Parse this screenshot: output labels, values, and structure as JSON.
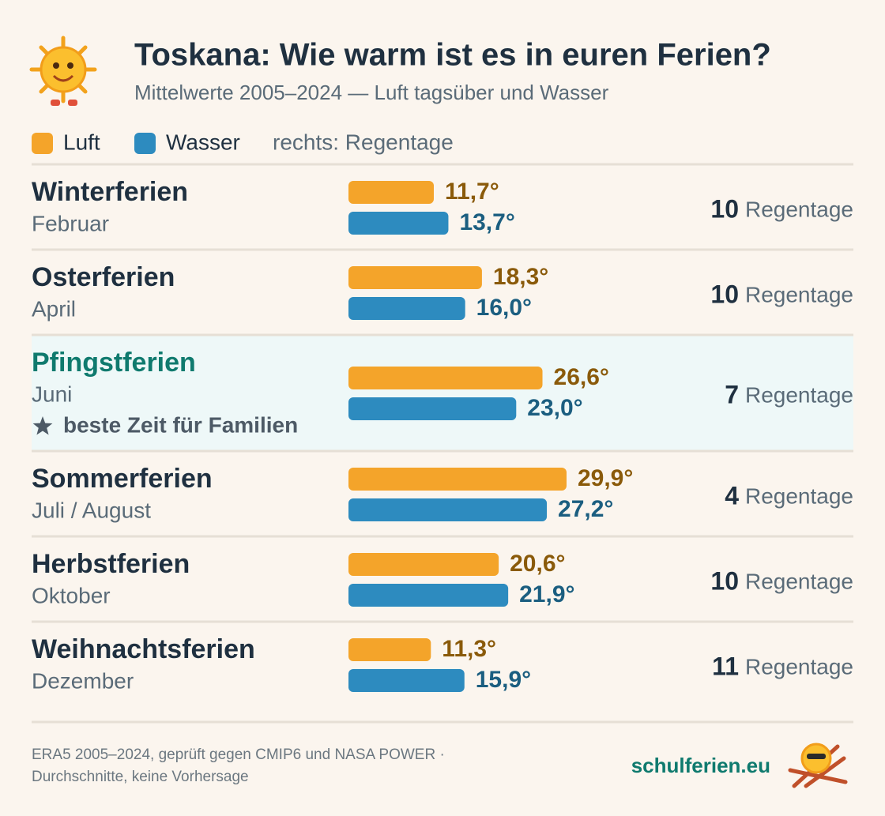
{
  "chart_data": {
    "type": "bar",
    "title": "Toskana: Wie warm ist es in euren Ferien?",
    "subtitle": "Mittelwerte 2005–2024 — Luft tagsüber und Wasser",
    "categories": [
      "Winterferien",
      "Osterferien",
      "Pfingstferien",
      "Sommerferien",
      "Herbstferien",
      "Weihnachtsferien"
    ],
    "sublabels": [
      "Februar",
      "April",
      "Juni",
      "Juli / August",
      "Oktober",
      "Dezember"
    ],
    "highlight": {
      "index": 2,
      "note": "beste Zeit für Familien"
    },
    "series": [
      {
        "name": "Luft",
        "color": "#f4a42a",
        "label_color": "#8a5a0a",
        "values": [
          11.7,
          18.3,
          26.6,
          29.9,
          20.6,
          11.3
        ],
        "value_labels": [
          "11,7°",
          "18,3°",
          "26,6°",
          "29,9°",
          "20,6°",
          "11,3°"
        ]
      },
      {
        "name": "Wasser",
        "color": "#2d8bbf",
        "label_color": "#1b5e80",
        "values": [
          13.7,
          16.0,
          23.0,
          27.2,
          21.9,
          15.9
        ],
        "value_labels": [
          "13,7°",
          "16,0°",
          "23,0°",
          "27,2°",
          "21,9°",
          "15,9°"
        ]
      }
    ],
    "rain_days": {
      "note": "rechts: Regentage",
      "label": "Regentage",
      "values": [
        10,
        10,
        7,
        4,
        10,
        11
      ]
    }
  },
  "footer": {
    "source": [
      "ERA5 2005–2024, geprüft gegen CMIP6 und NASA POWER ·",
      "Durchschnitte, keine Vorhersage"
    ],
    "brand": "schulferien.eu"
  }
}
